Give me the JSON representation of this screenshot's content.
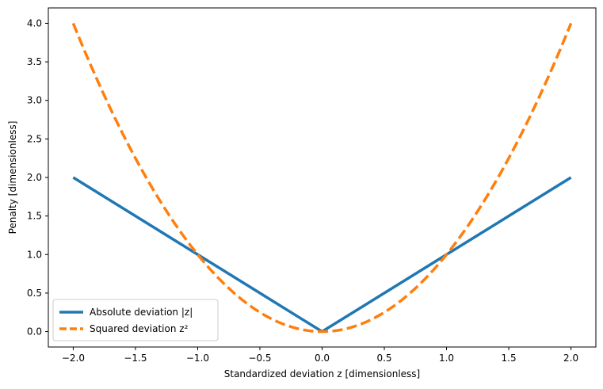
{
  "chart_data": {
    "type": "line",
    "title": "",
    "xlabel": "Standardized deviation z [dimensionless]",
    "ylabel": "Penalty [dimensionless]",
    "xlim": [
      -2.2,
      2.2
    ],
    "ylim": [
      -0.2,
      4.2
    ],
    "xticks": [
      -2.0,
      -1.5,
      -1.0,
      -0.5,
      0.0,
      0.5,
      1.0,
      1.5,
      2.0
    ],
    "xtick_labels": [
      "−2.0",
      "−1.5",
      "−1.0",
      "−0.5",
      "0.0",
      "0.5",
      "1.0",
      "1.5",
      "2.0"
    ],
    "yticks": [
      0.0,
      0.5,
      1.0,
      1.5,
      2.0,
      2.5,
      3.0,
      3.5,
      4.0
    ],
    "ytick_labels": [
      "0.0",
      "0.5",
      "1.0",
      "1.5",
      "2.0",
      "2.5",
      "3.0",
      "3.5",
      "4.0"
    ],
    "grid": false,
    "legend_position": "lower-left",
    "series": [
      {
        "name": "Absolute deviation |z|",
        "color": "#1f77b4",
        "style": "solid",
        "x": [
          -2.0,
          -1.5,
          -1.0,
          -0.5,
          0.0,
          0.5,
          1.0,
          1.5,
          2.0
        ],
        "y": [
          2.0,
          1.5,
          1.0,
          0.5,
          0.0,
          0.5,
          1.0,
          1.5,
          2.0
        ]
      },
      {
        "name": "Squared deviation z²",
        "color": "#ff7f0e",
        "style": "dashed",
        "x": [
          -2.0,
          -1.75,
          -1.5,
          -1.25,
          -1.0,
          -0.75,
          -0.5,
          -0.25,
          0.0,
          0.25,
          0.5,
          0.75,
          1.0,
          1.25,
          1.5,
          1.75,
          2.0
        ],
        "y": [
          4.0,
          3.0625,
          2.25,
          1.5625,
          1.0,
          0.5625,
          0.25,
          0.0625,
          0.0,
          0.0625,
          0.25,
          0.5625,
          1.0,
          1.5625,
          2.25,
          3.0625,
          4.0
        ]
      }
    ]
  }
}
